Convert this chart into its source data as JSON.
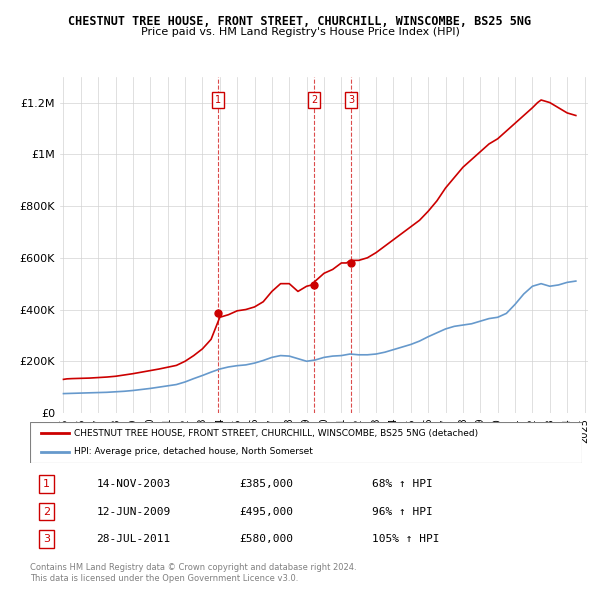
{
  "title": "CHESTNUT TREE HOUSE, FRONT STREET, CHURCHILL, WINSCOMBE, BS25 5NG",
  "subtitle": "Price paid vs. HM Land Registry's House Price Index (HPI)",
  "ylabel": "",
  "xlabel": "",
  "ylim": [
    0,
    1300000
  ],
  "yticks": [
    0,
    200000,
    400000,
    600000,
    800000,
    1000000,
    1200000
  ],
  "ytick_labels": [
    "£0",
    "£200K",
    "£400K",
    "£600K",
    "£800K",
    "£1M",
    "£1.2M"
  ],
  "years_hpi": [
    1995,
    1995.5,
    1996,
    1996.5,
    1997,
    1997.5,
    1998,
    1998.5,
    1999,
    1999.5,
    2000,
    2000.5,
    2001,
    2001.5,
    2002,
    2002.5,
    2003,
    2003.5,
    2004,
    2004.5,
    2005,
    2005.5,
    2006,
    2006.5,
    2007,
    2007.5,
    2008,
    2008.5,
    2009,
    2009.5,
    2010,
    2010.5,
    2011,
    2011.5,
    2012,
    2012.5,
    2013,
    2013.5,
    2014,
    2014.5,
    2015,
    2015.5,
    2016,
    2016.5,
    2017,
    2017.5,
    2018,
    2018.5,
    2019,
    2019.5,
    2020,
    2020.5,
    2021,
    2021.5,
    2022,
    2022.5,
    2023,
    2023.5,
    2024,
    2024.5
  ],
  "hpi_values": [
    75000,
    76000,
    77000,
    78000,
    79000,
    80000,
    82000,
    84000,
    87000,
    91000,
    95000,
    100000,
    105000,
    110000,
    120000,
    133000,
    145000,
    158000,
    170000,
    178000,
    183000,
    186000,
    193000,
    203000,
    215000,
    222000,
    220000,
    210000,
    200000,
    205000,
    215000,
    220000,
    222000,
    228000,
    225000,
    225000,
    228000,
    235000,
    245000,
    255000,
    265000,
    278000,
    295000,
    310000,
    325000,
    335000,
    340000,
    345000,
    355000,
    365000,
    370000,
    385000,
    420000,
    460000,
    490000,
    500000,
    490000,
    495000,
    505000,
    510000
  ],
  "years_price": [
    1995,
    1995.2,
    1995.5,
    1996,
    1996.5,
    1997,
    1997.5,
    1998,
    1998.5,
    1999,
    1999.5,
    2000,
    2000.5,
    2001,
    2001.5,
    2002,
    2002.5,
    2003,
    2003.3,
    2003.5,
    2004,
    2004.5,
    2005,
    2005.5,
    2006,
    2006.5,
    2007,
    2007.5,
    2008,
    2008.5,
    2009,
    2009.3,
    2009.5,
    2010,
    2010.5,
    2011,
    2011.3,
    2011.5,
    2012,
    2012.5,
    2013,
    2013.5,
    2014,
    2014.5,
    2015,
    2015.5,
    2016,
    2016.5,
    2017,
    2017.5,
    2018,
    2018.5,
    2019,
    2019.5,
    2020,
    2020.5,
    2021,
    2021.5,
    2022,
    2022.3,
    2022.5,
    2023,
    2023.5,
    2024,
    2024.5
  ],
  "price_values": [
    130000,
    132000,
    133000,
    134000,
    135000,
    137000,
    139000,
    142000,
    147000,
    152000,
    158000,
    164000,
    170000,
    177000,
    184000,
    200000,
    222000,
    248000,
    270000,
    285000,
    370000,
    380000,
    395000,
    400000,
    410000,
    430000,
    470000,
    500000,
    500000,
    470000,
    490000,
    495000,
    510000,
    540000,
    555000,
    580000,
    580000,
    590000,
    590000,
    600000,
    620000,
    645000,
    670000,
    695000,
    720000,
    745000,
    780000,
    820000,
    870000,
    910000,
    950000,
    980000,
    1010000,
    1040000,
    1060000,
    1090000,
    1120000,
    1150000,
    1180000,
    1200000,
    1210000,
    1200000,
    1180000,
    1160000,
    1150000
  ],
  "sale_points": [
    {
      "year": 2003.87,
      "price": 385000,
      "label": "1"
    },
    {
      "year": 2009.45,
      "price": 495000,
      "label": "2"
    },
    {
      "year": 2011.57,
      "price": 580000,
      "label": "3"
    }
  ],
  "sale_vlines": [
    2003.87,
    2009.45,
    2011.57
  ],
  "xticks": [
    1995,
    1996,
    1997,
    1998,
    1999,
    2000,
    2001,
    2002,
    2003,
    2004,
    2005,
    2006,
    2007,
    2008,
    2009,
    2010,
    2011,
    2012,
    2013,
    2014,
    2015,
    2016,
    2017,
    2018,
    2019,
    2020,
    2021,
    2022,
    2023,
    2024,
    2025
  ],
  "red_color": "#cc0000",
  "blue_color": "#6699cc",
  "legend_items": [
    "CHESTNUT TREE HOUSE, FRONT STREET, CHURCHILL, WINSCOMBE, BS25 5NG (detached)",
    "HPI: Average price, detached house, North Somerset"
  ],
  "table_rows": [
    {
      "num": "1",
      "date": "14-NOV-2003",
      "price": "£385,000",
      "hpi": "68% ↑ HPI"
    },
    {
      "num": "2",
      "date": "12-JUN-2009",
      "price": "£495,000",
      "hpi": "96% ↑ HPI"
    },
    {
      "num": "3",
      "date": "28-JUL-2011",
      "price": "£580,000",
      "hpi": "105% ↑ HPI"
    }
  ],
  "footnote": "Contains HM Land Registry data © Crown copyright and database right 2024.\nThis data is licensed under the Open Government Licence v3.0."
}
